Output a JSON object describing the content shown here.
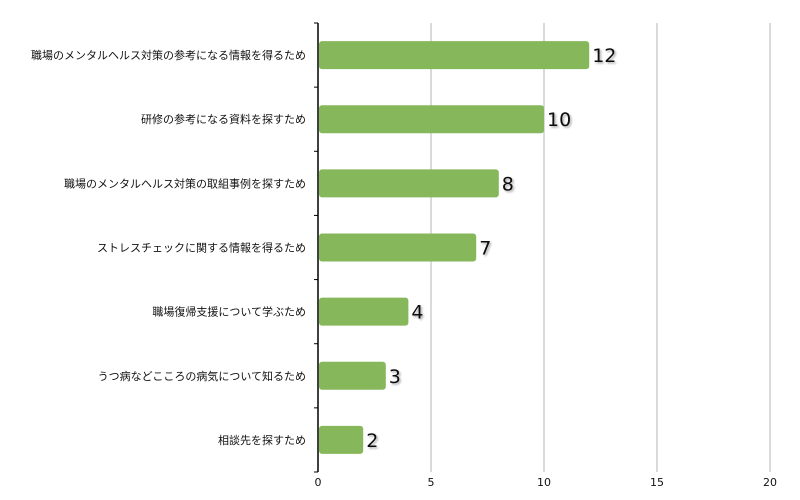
{
  "chart_data": {
    "type": "bar",
    "orientation": "horizontal",
    "categories": [
      "職場のメンタルヘルス対策の参考になる情報を得るため",
      "研修の参考になる資料を探すため",
      "職場のメンタルヘルス対策の取組事例を探すため",
      "ストレスチェックに関する情報を得るため",
      "職場復帰支援について学ぶため",
      "うつ病などこころの病気について知るため",
      "相談先を探すため"
    ],
    "values": [
      12,
      10,
      8,
      7,
      4,
      3,
      2
    ],
    "data_labels": [
      "12",
      "10",
      "8",
      "7",
      "4",
      "3",
      "2"
    ],
    "xlim": [
      0,
      20
    ],
    "x_ticks": [
      "0",
      "5",
      "10",
      "15",
      "20"
    ],
    "grid": true,
    "bar_color": "#86b75a",
    "title": "",
    "xlabel": "",
    "ylabel": ""
  }
}
